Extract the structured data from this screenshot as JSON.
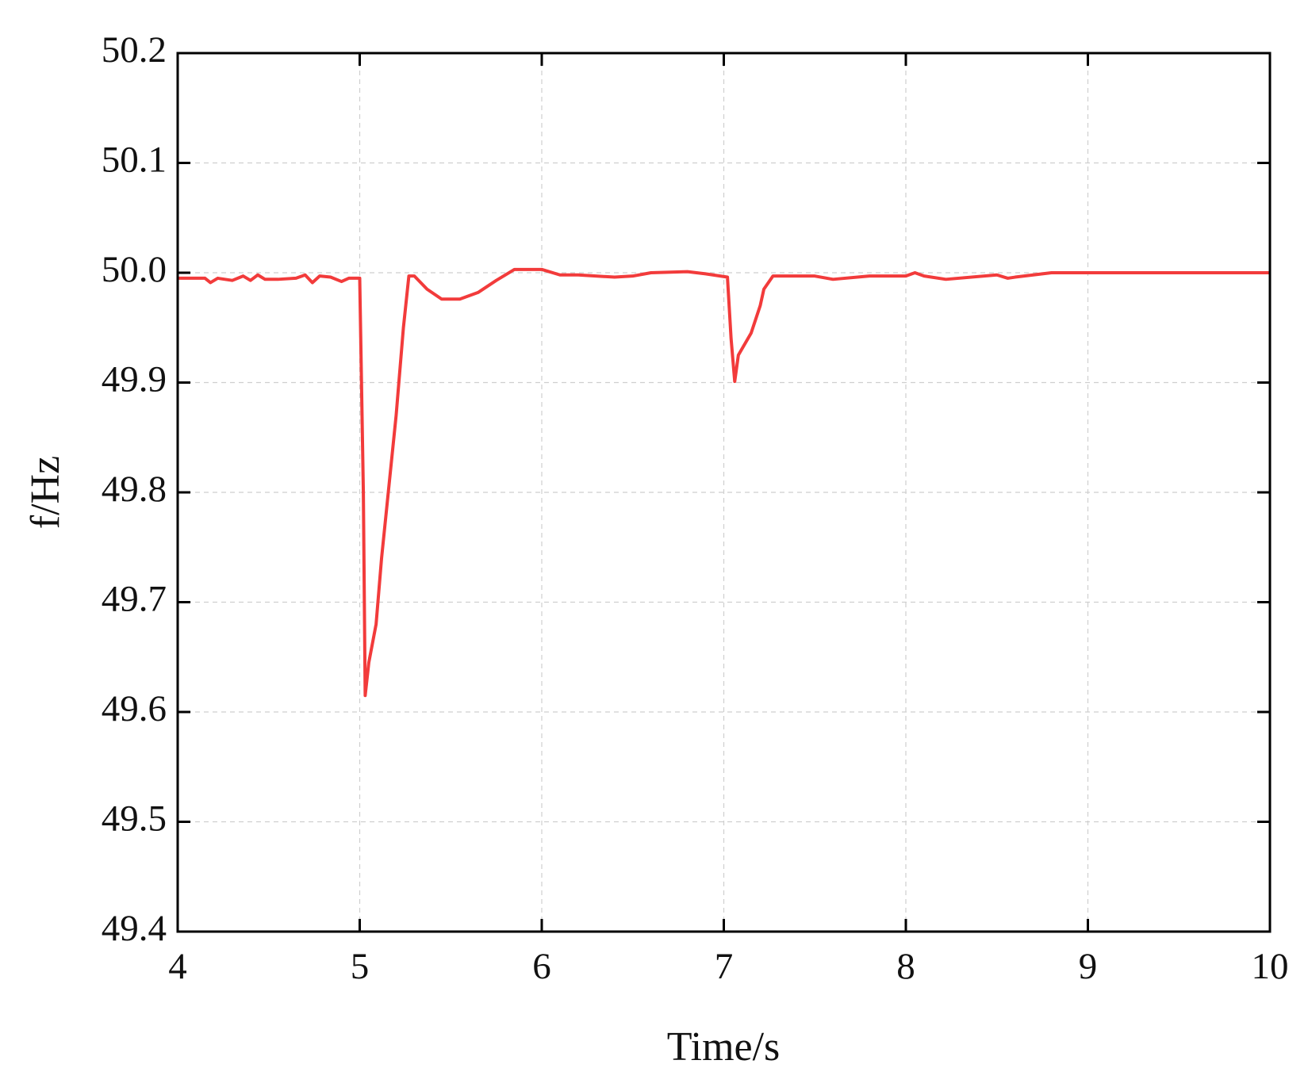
{
  "chart_data": {
    "type": "line",
    "xlabel": "Time/s",
    "ylabel": "f/Hz",
    "xlim": [
      4,
      10
    ],
    "xticks": [
      4,
      5,
      6,
      7,
      8,
      9,
      10
    ],
    "ylim": [
      49.4,
      50.2
    ],
    "yticks": [
      49.4,
      49.5,
      49.6,
      49.7,
      49.8,
      49.9,
      {
        "value": 50,
        "label": "50.0"
      },
      50.1,
      50.2
    ],
    "grid": true,
    "series": [
      {
        "color": "#f23b3b",
        "x": [
          4.0,
          4.15,
          4.18,
          4.22,
          4.3,
          4.36,
          4.4,
          4.44,
          4.48,
          4.55,
          4.65,
          4.7,
          4.74,
          4.78,
          4.84,
          4.9,
          4.94,
          5.0,
          5.02,
          5.03,
          5.05,
          5.09,
          5.12,
          5.2,
          5.24,
          5.27,
          5.3,
          5.37,
          5.45,
          5.55,
          5.65,
          5.75,
          5.85,
          6.0,
          6.1,
          6.2,
          6.4,
          6.5,
          6.6,
          6.8,
          6.9,
          7.02,
          7.04,
          7.06,
          7.08,
          7.15,
          7.2,
          7.22,
          7.27,
          7.5,
          7.6,
          7.8,
          8.0,
          8.05,
          8.1,
          8.22,
          8.5,
          8.56,
          8.6,
          8.8,
          10.0
        ],
        "values": [
          49.995,
          49.995,
          49.991,
          49.995,
          49.993,
          49.997,
          49.993,
          49.998,
          49.994,
          49.994,
          49.995,
          49.998,
          49.991,
          49.997,
          49.996,
          49.992,
          49.995,
          49.995,
          49.8,
          49.615,
          49.645,
          49.68,
          49.74,
          49.87,
          49.95,
          49.997,
          49.997,
          49.985,
          49.976,
          49.976,
          49.982,
          49.993,
          50.003,
          50.003,
          49.998,
          49.998,
          49.996,
          49.997,
          50.0,
          50.001,
          49.999,
          49.996,
          49.94,
          49.901,
          49.925,
          49.945,
          49.97,
          49.985,
          49.997,
          49.997,
          49.994,
          49.997,
          49.997,
          50.0,
          49.997,
          49.994,
          49.998,
          49.995,
          49.996,
          50.0,
          50.0
        ]
      }
    ]
  }
}
